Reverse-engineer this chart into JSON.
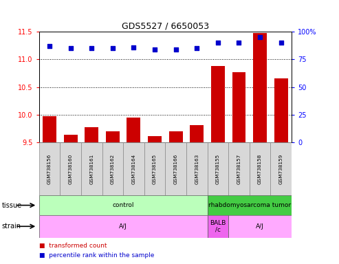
{
  "title": "GDS5527 / 6650053",
  "samples": [
    "GSM738156",
    "GSM738160",
    "GSM738161",
    "GSM738162",
    "GSM738164",
    "GSM738165",
    "GSM738166",
    "GSM738163",
    "GSM738155",
    "GSM738157",
    "GSM738158",
    "GSM738159"
  ],
  "bar_values": [
    9.97,
    9.64,
    9.78,
    9.7,
    9.95,
    9.61,
    9.7,
    9.81,
    10.88,
    10.77,
    11.48,
    10.66
  ],
  "dot_values": [
    87,
    85,
    85,
    85,
    86,
    84,
    84,
    85,
    90,
    90,
    95,
    90
  ],
  "ylim_left": [
    9.5,
    11.5
  ],
  "ylim_right": [
    0,
    100
  ],
  "yticks_left": [
    9.5,
    10.0,
    10.5,
    11.0,
    11.5
  ],
  "yticks_right": [
    0,
    25,
    50,
    75,
    100
  ],
  "ytick_right_labels": [
    "0",
    "25",
    "50",
    "75",
    "100%"
  ],
  "bar_color": "#cc0000",
  "dot_color": "#0000cc",
  "tissue_groups": [
    {
      "label": "control",
      "start": 0,
      "end": 8,
      "color": "#bbffbb"
    },
    {
      "label": "rhabdomyosarcoma tumor",
      "start": 8,
      "end": 12,
      "color": "#44cc44"
    }
  ],
  "strain_groups": [
    {
      "label": "A/J",
      "start": 0,
      "end": 8,
      "color": "#ffaaff"
    },
    {
      "label": "BALB\n/c",
      "start": 8,
      "end": 9,
      "color": "#ee66ee"
    },
    {
      "label": "A/J",
      "start": 9,
      "end": 12,
      "color": "#ffaaff"
    }
  ],
  "legend_bar_label": "transformed count",
  "legend_dot_label": "percentile rank within the sample",
  "bg_color": "#ffffff",
  "sample_cell_color": "#d8d8d8",
  "grid_yticks": [
    10.0,
    10.5,
    11.0
  ]
}
